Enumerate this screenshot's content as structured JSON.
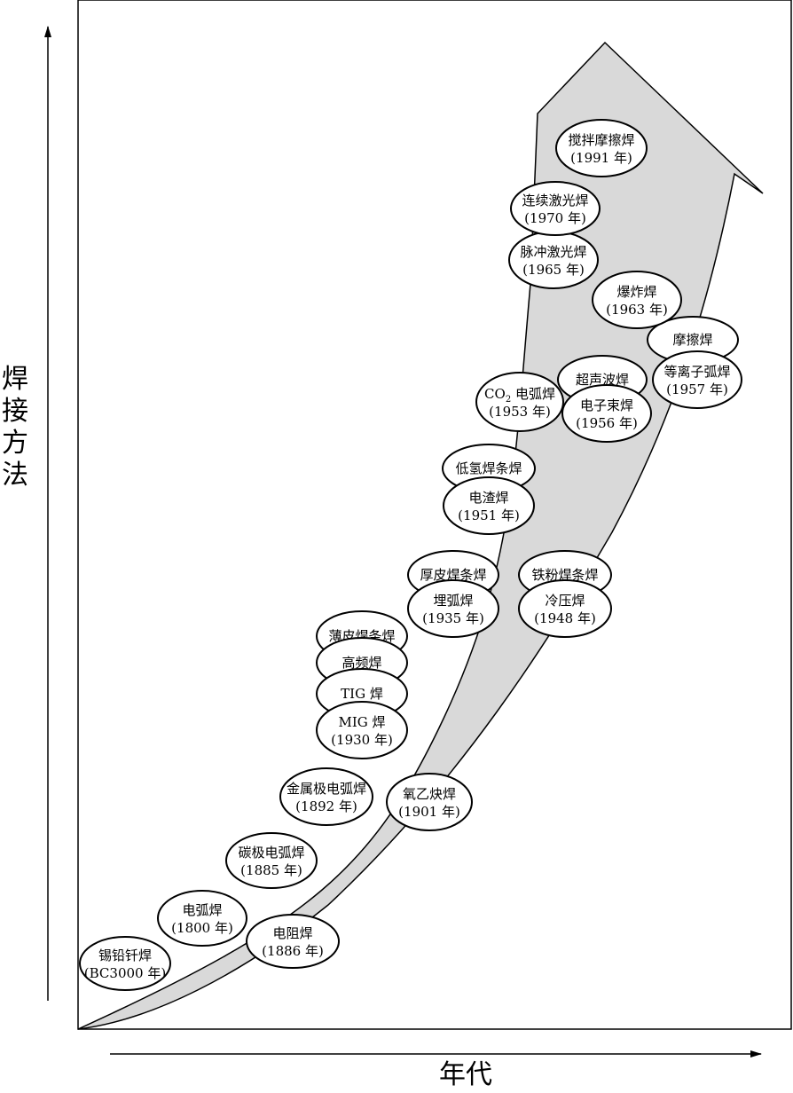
{
  "axes": {
    "y_label": [
      "焊",
      "接",
      "方",
      "法"
    ],
    "x_label": "年代"
  },
  "methods": [
    {
      "id": "tin-lead-solder",
      "name": "锡铅钎焊",
      "year": "(BC3000 年)"
    },
    {
      "id": "arc-welding",
      "name": "电弧焊",
      "year": "(1800 年)"
    },
    {
      "id": "resistance-welding",
      "name": "电阻焊",
      "year": "(1886 年)"
    },
    {
      "id": "carbon-arc-welding",
      "name": "碳极电弧焊",
      "year": "(1885 年)"
    },
    {
      "id": "metal-arc-welding",
      "name": "金属极电弧焊",
      "year": "(1892 年)"
    },
    {
      "id": "oxy-acetylene-welding",
      "name": "氧乙炔焊",
      "year": "(1901 年)"
    },
    {
      "id": "thin-coated-electrode",
      "name": "薄皮焊条焊",
      "year": ""
    },
    {
      "id": "high-frequency-welding",
      "name": "高频焊",
      "year": ""
    },
    {
      "id": "tig-welding",
      "name": "TIG 焊",
      "year": ""
    },
    {
      "id": "mig-welding",
      "name": "MIG 焊",
      "year": "(1930 年)"
    },
    {
      "id": "thick-coated-electrode",
      "name": "厚皮焊条焊",
      "year": ""
    },
    {
      "id": "submerged-arc-welding",
      "name": "埋弧焊",
      "year": "(1935 年)"
    },
    {
      "id": "iron-powder-electrode",
      "name": "铁粉焊条焊",
      "year": ""
    },
    {
      "id": "cold-pressure-welding",
      "name": "冷压焊",
      "year": "(1948 年)"
    },
    {
      "id": "low-hydrogen-electrode",
      "name": "低氢焊条焊",
      "year": ""
    },
    {
      "id": "electroslag-welding",
      "name": "电渣焊",
      "year": "(1951 年)"
    },
    {
      "id": "co2-arc-welding",
      "name": "CO",
      "name_sub": "2",
      "name_rest": " 电弧焊",
      "year": "(1953 年)"
    },
    {
      "id": "ultrasonic-welding",
      "name": "超声波焊",
      "year": ""
    },
    {
      "id": "electron-beam-welding",
      "name": "电子束焊",
      "year": "(1956 年)"
    },
    {
      "id": "friction-welding",
      "name": "摩擦焊",
      "year": ""
    },
    {
      "id": "plasma-arc-welding",
      "name": "等离子弧焊",
      "year": "(1957 年)"
    },
    {
      "id": "explosive-welding",
      "name": "爆炸焊",
      "year": "(1963 年)"
    },
    {
      "id": "pulsed-laser-welding",
      "name": "脉冲激光焊",
      "year": "(1965 年)"
    },
    {
      "id": "continuous-laser-welding",
      "name": "连续激光焊",
      "year": "(1970 年)"
    },
    {
      "id": "friction-stir-welding",
      "name": "搅拌摩擦焊",
      "year": "(1991 年)"
    }
  ],
  "colors": {
    "arrow_fill": "#d9d9d9",
    "stroke": "#000000",
    "bubble_fill": "#ffffff"
  }
}
